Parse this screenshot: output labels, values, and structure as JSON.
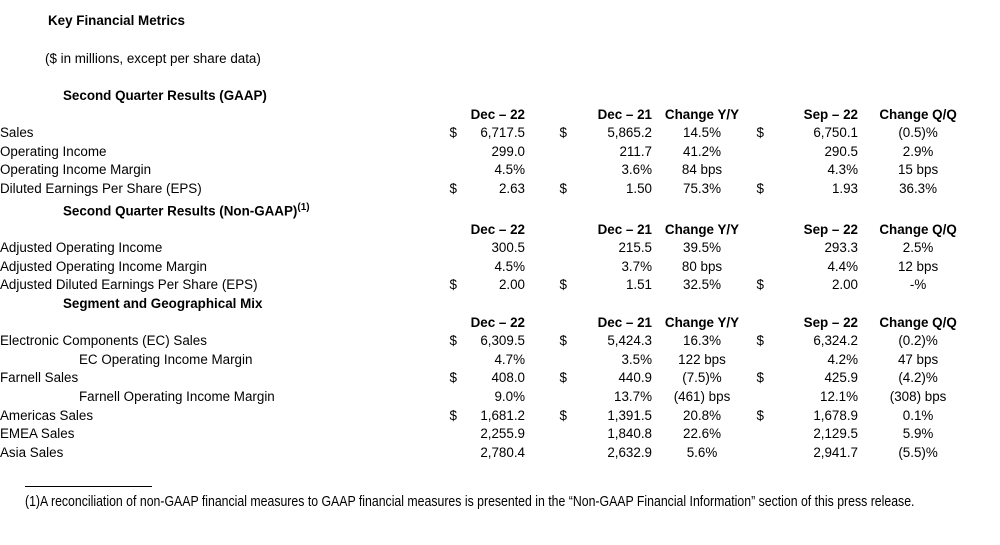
{
  "document": {
    "title": "Key Financial Metrics",
    "subtitle": "($ in millions, except per share data)",
    "footnote": "(1)A reconciliation of non-GAAP financial measures to GAAP financial measures is presented in the “Non-GAAP Financial Information” section of this press release.",
    "text_color": "#000000",
    "background_color": "#ffffff"
  },
  "table": {
    "columns": [
      "Dec – 22",
      "Dec – 21",
      "Change Y/Y",
      "Sep – 22",
      "Change Q/Q"
    ],
    "sections": [
      {
        "heading": "Second Quarter Results (GAAP)",
        "footnote_ref": "",
        "rows": [
          {
            "label": "Sales",
            "indent": false,
            "cells": [
              "$",
              "6,717.5",
              "$",
              "5,865.2",
              "14.5%",
              "$",
              "6,750.1",
              "(0.5)%"
            ]
          },
          {
            "label": "Operating Income",
            "indent": false,
            "cells": [
              "",
              "299.0",
              "",
              "211.7",
              "41.2%",
              "",
              "290.5",
              "2.9%"
            ]
          },
          {
            "label": "Operating Income Margin",
            "indent": false,
            "cells": [
              "",
              "4.5%",
              "",
              "3.6%",
              "84 bps",
              "",
              "4.3%",
              "15 bps"
            ]
          },
          {
            "label": "Diluted Earnings Per Share (EPS)",
            "indent": false,
            "cells": [
              "$",
              "2.63",
              "$",
              "1.50",
              "75.3%",
              "$",
              "1.93",
              "36.3%"
            ]
          }
        ]
      },
      {
        "heading": "Second Quarter Results (Non-GAAP)",
        "footnote_ref": "(1)",
        "rows": [
          {
            "label": "Adjusted Operating Income",
            "indent": false,
            "cells": [
              "",
              "300.5",
              "",
              "215.5",
              "39.5%",
              "",
              "293.3",
              "2.5%"
            ]
          },
          {
            "label": "Adjusted Operating Income Margin",
            "indent": false,
            "cells": [
              "",
              "4.5%",
              "",
              "3.7%",
              "80 bps",
              "",
              "4.4%",
              "12 bps"
            ]
          },
          {
            "label": "Adjusted Diluted Earnings Per Share (EPS)",
            "indent": false,
            "cells": [
              "$",
              "2.00",
              "$",
              "1.51",
              "32.5%",
              "$",
              "2.00",
              "-%"
            ]
          }
        ]
      },
      {
        "heading": "Segment and Geographical Mix",
        "footnote_ref": "",
        "rows": [
          {
            "label": "Electronic Components (EC) Sales",
            "indent": false,
            "cells": [
              "$",
              "6,309.5",
              "$",
              "5,424.3",
              "16.3%",
              "$",
              "6,324.2",
              "(0.2)%"
            ]
          },
          {
            "label": "EC Operating Income Margin",
            "indent": true,
            "cells": [
              "",
              "4.7%",
              "",
              "3.5%",
              "122 bps",
              "",
              "4.2%",
              "47 bps"
            ]
          },
          {
            "label": "Farnell Sales",
            "indent": false,
            "cells": [
              "$",
              "408.0",
              "$",
              "440.9",
              "(7.5)%",
              "$",
              "425.9",
              "(4.2)%"
            ]
          },
          {
            "label": "Farnell Operating Income Margin",
            "indent": true,
            "cells": [
              "",
              "9.0%",
              "",
              "13.7%",
              "(461) bps",
              "",
              "12.1%",
              "(308) bps"
            ]
          },
          {
            "label": "Americas Sales",
            "indent": false,
            "cells": [
              "$",
              "1,681.2",
              "$",
              "1,391.5",
              "20.8%",
              "$",
              "1,678.9",
              "0.1%"
            ]
          },
          {
            "label": "EMEA Sales",
            "indent": false,
            "cells": [
              "",
              "2,255.9",
              "",
              "1,840.8",
              "22.6%",
              "",
              "2,129.5",
              "5.9%"
            ]
          },
          {
            "label": "Asia Sales",
            "indent": false,
            "cells": [
              "",
              "2,780.4",
              "",
              "2,632.9",
              "5.6%",
              "",
              "2,941.7",
              "(5.5)%"
            ]
          }
        ]
      }
    ]
  }
}
